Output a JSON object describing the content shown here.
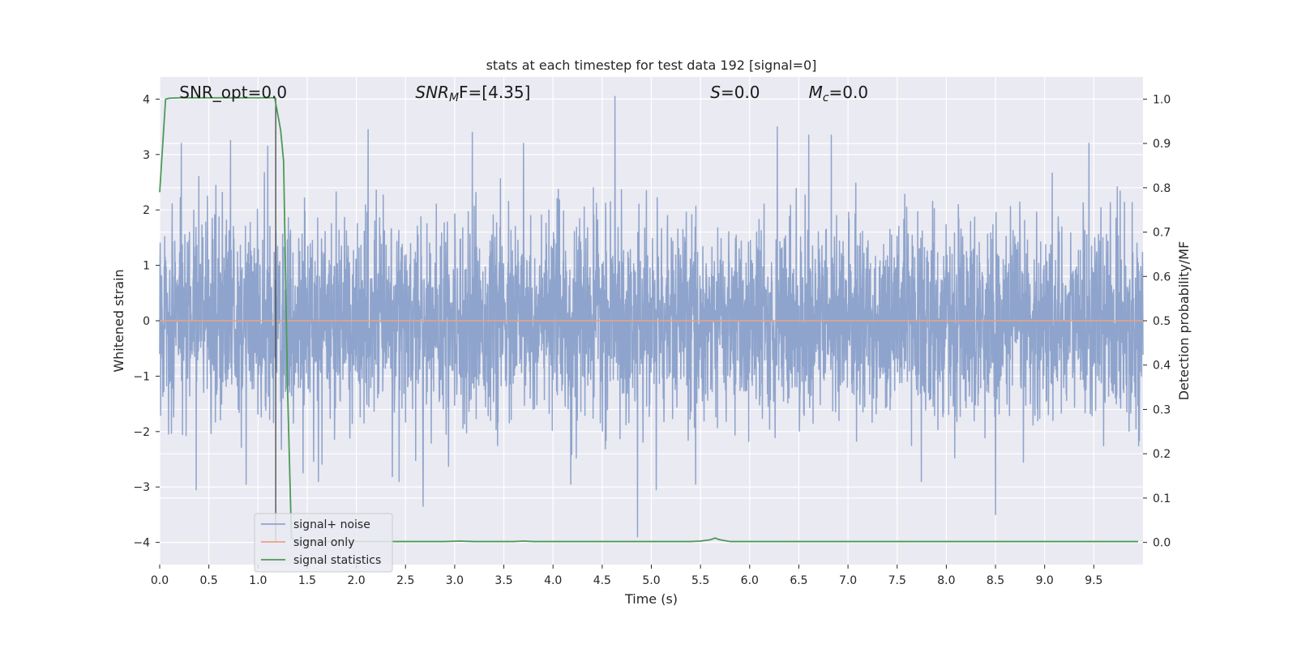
{
  "chart_data": {
    "type": "line",
    "title": "stats at each timestep for test data 192 [signal=0]",
    "xlabel": "Time (s)",
    "ylabel_left": "Whitened strain",
    "ylabel_right": "Detection probability/MF",
    "xlim": [
      0,
      10
    ],
    "ylim_left": [
      -4.4,
      4.4
    ],
    "ylim_right": [
      -0.05,
      1.05
    ],
    "x_ticks": [
      0.0,
      0.5,
      1.0,
      1.5,
      2.0,
      2.5,
      3.0,
      3.5,
      4.0,
      4.5,
      5.0,
      5.5,
      6.0,
      6.5,
      7.0,
      7.5,
      8.0,
      8.5,
      9.0,
      9.5
    ],
    "x_tick_labels": [
      "0.0",
      "0.5",
      "1.0",
      "1.5",
      "2.0",
      "2.5",
      "3.0",
      "3.5",
      "4.0",
      "4.5",
      "5.0",
      "5.5",
      "6.0",
      "6.5",
      "7.0",
      "7.5",
      "8.0",
      "8.5",
      "9.0",
      "9.5"
    ],
    "y_left_ticks": [
      4,
      3,
      2,
      1,
      0,
      -1,
      -2,
      -3,
      -4
    ],
    "y_left_tick_labels": [
      "4",
      "3",
      "2",
      "1",
      "0",
      "−1",
      "−2",
      "−3",
      "−4"
    ],
    "y_right_ticks": [
      1.0,
      0.9,
      0.8,
      0.7,
      0.6,
      0.5,
      0.4,
      0.3,
      0.2,
      0.1,
      0.0
    ],
    "y_right_tick_labels": [
      "1.0",
      "0.9",
      "0.8",
      "0.7",
      "0.6",
      "0.5",
      "0.4",
      "0.3",
      "0.2",
      "0.1",
      "0.0"
    ],
    "grid": true,
    "legend_placement": "lower-left",
    "vline_x": 1.18,
    "annotations": [
      {
        "text": "SNR_opt=0.0",
        "x": 0.2
      },
      {
        "text": "SNR",
        "sub": "M",
        "suffix": "F=[4.35]",
        "x": 2.6,
        "italic": true
      },
      {
        "text": "S",
        "suffix": "=0.0",
        "x": 5.6,
        "italic": true
      },
      {
        "text": "M",
        "sub": "c",
        "suffix": "=0.0",
        "x": 6.6,
        "italic": true
      }
    ],
    "series": [
      {
        "name": "signal+ noise",
        "color": "#8fa4cc",
        "axis": "left",
        "noise_std": 0.85,
        "peaks": [
          {
            "x": 0.22,
            "y": 3.2
          },
          {
            "x": 0.72,
            "y": 3.25
          },
          {
            "x": 1.1,
            "y": 3.15
          },
          {
            "x": 2.12,
            "y": 3.45
          },
          {
            "x": 3.18,
            "y": 3.4
          },
          {
            "x": 3.7,
            "y": 3.2
          },
          {
            "x": 4.63,
            "y": 4.05
          },
          {
            "x": 6.28,
            "y": 3.5
          },
          {
            "x": 6.6,
            "y": 3.35
          },
          {
            "x": 6.83,
            "y": 3.35
          },
          {
            "x": 9.45,
            "y": 3.2
          },
          {
            "x": 0.37,
            "y": -3.05
          },
          {
            "x": 0.88,
            "y": -2.95
          },
          {
            "x": 2.68,
            "y": -3.35
          },
          {
            "x": 4.86,
            "y": -3.9
          },
          {
            "x": 5.05,
            "y": -3.05
          },
          {
            "x": 8.5,
            "y": -3.5
          },
          {
            "x": 5.45,
            "y": -2.95
          },
          {
            "x": 4.18,
            "y": -2.95
          }
        ]
      },
      {
        "name": "signal only",
        "color": "#e8a384",
        "axis": "left",
        "x": [
          0,
          10
        ],
        "y": [
          0,
          0
        ]
      },
      {
        "name": "signal statistics",
        "color": "#4c9a56",
        "axis": "right",
        "x": [
          0.0,
          0.06,
          0.1,
          0.2,
          0.5,
          0.8,
          1.0,
          1.17,
          1.23,
          1.26,
          1.3,
          1.34,
          1.4,
          1.5,
          2.0,
          2.5,
          2.9,
          3.05,
          3.2,
          3.4,
          3.6,
          3.7,
          3.8,
          4.0,
          4.5,
          5.0,
          5.4,
          5.5,
          5.6,
          5.65,
          5.68,
          5.72,
          5.8,
          6.0,
          7.0,
          8.0,
          9.0,
          9.95
        ],
        "y": [
          0.79,
          1.0,
          1.002,
          1.003,
          1.003,
          1.003,
          1.003,
          1.003,
          0.93,
          0.86,
          0.35,
          0.01,
          0.002,
          0.002,
          0.002,
          0.002,
          0.002,
          0.003,
          0.002,
          0.002,
          0.002,
          0.003,
          0.002,
          0.002,
          0.002,
          0.002,
          0.002,
          0.003,
          0.006,
          0.01,
          0.007,
          0.005,
          0.002,
          0.002,
          0.002,
          0.002,
          0.002,
          0.002
        ]
      }
    ]
  }
}
